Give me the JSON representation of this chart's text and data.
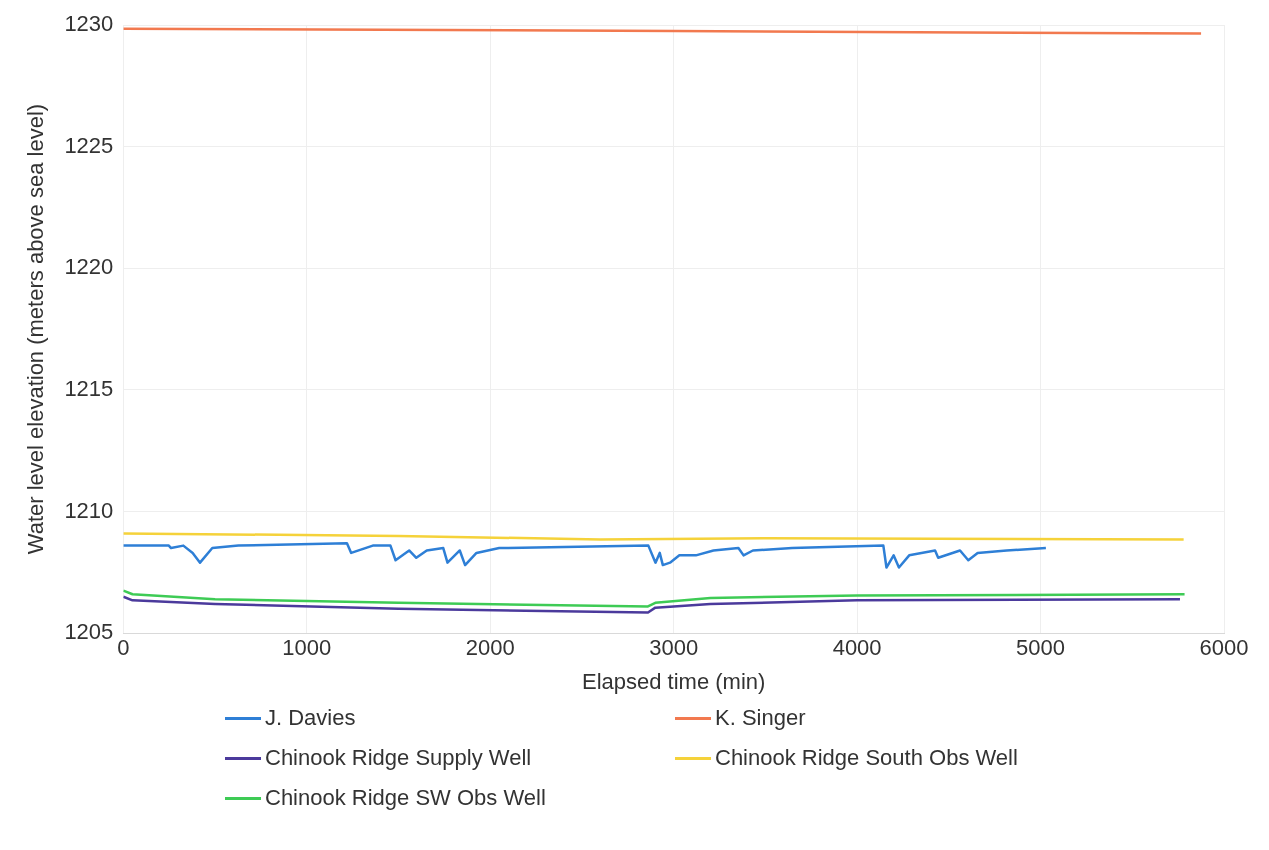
{
  "chart_data": {
    "type": "line",
    "xlabel": "Elapsed time (min)",
    "ylabel": "Water level elevation (meters above sea level)",
    "xlim": [
      0,
      6000
    ],
    "xticks": [
      0,
      1000,
      2000,
      3000,
      4000,
      5000,
      6000
    ],
    "ylim": [
      1205,
      1230
    ],
    "yticks": [
      1205,
      1210,
      1215,
      1220,
      1225,
      1230
    ],
    "grid": true,
    "legend": "bottom",
    "marker": "none",
    "line_style": "solid",
    "series": [
      {
        "name": "J. Davies",
        "color": "#2e7fd6",
        "x": [
          0,
          248,
          260,
          327,
          378,
          418,
          485,
          627,
          1219,
          1242,
          1360,
          1456,
          1484,
          1558,
          1597,
          1654,
          1744,
          1767,
          1834,
          1863,
          1925,
          2049,
          2862,
          2901,
          2924,
          2941,
          2980,
          3031,
          3121,
          3217,
          3353,
          3381,
          3432,
          3646,
          4143,
          4160,
          4199,
          4228,
          4284,
          4425,
          4442,
          4561,
          4606,
          4657,
          4815,
          5029
        ],
        "values": [
          1208.6,
          1208.6,
          1208.5,
          1208.6,
          1208.3,
          1207.9,
          1208.5,
          1208.6,
          1208.7,
          1208.3,
          1208.6,
          1208.6,
          1208.0,
          1208.4,
          1208.1,
          1208.4,
          1208.5,
          1207.9,
          1208.4,
          1207.8,
          1208.3,
          1208.5,
          1208.6,
          1207.9,
          1208.3,
          1207.8,
          1207.9,
          1208.2,
          1208.2,
          1208.4,
          1208.5,
          1208.2,
          1208.4,
          1208.5,
          1208.6,
          1207.7,
          1208.2,
          1207.7,
          1208.2,
          1208.4,
          1208.1,
          1208.4,
          1208.0,
          1208.3,
          1208.4,
          1208.5
        ]
      },
      {
        "name": "K. Singer",
        "color": "#f2794f",
        "x": [
          0,
          3000,
          5875
        ],
        "values": [
          1229.85,
          1229.75,
          1229.65
        ]
      },
      {
        "name": "Chinook Ridge Supply Well",
        "color": "#4b3a9c",
        "x": [
          0,
          50,
          500,
          1500,
          2860,
          2900,
          3200,
          4000,
          5760
        ],
        "values": [
          1206.5,
          1206.35,
          1206.2,
          1206.0,
          1205.85,
          1206.05,
          1206.2,
          1206.35,
          1206.4
        ]
      },
      {
        "name": "Chinook Ridge South Obs Well",
        "color": "#f5d23a",
        "x": [
          0,
          1500,
          2600,
          3500,
          5780
        ],
        "values": [
          1209.1,
          1209.0,
          1208.85,
          1208.9,
          1208.85
        ]
      },
      {
        "name": "Chinook Ridge SW Obs Well",
        "color": "#3ecb55",
        "x": [
          0,
          50,
          500,
          1500,
          2860,
          2900,
          3200,
          4000,
          5785
        ],
        "values": [
          1206.75,
          1206.6,
          1206.4,
          1206.25,
          1206.1,
          1206.25,
          1206.45,
          1206.55,
          1206.6
        ]
      }
    ]
  }
}
